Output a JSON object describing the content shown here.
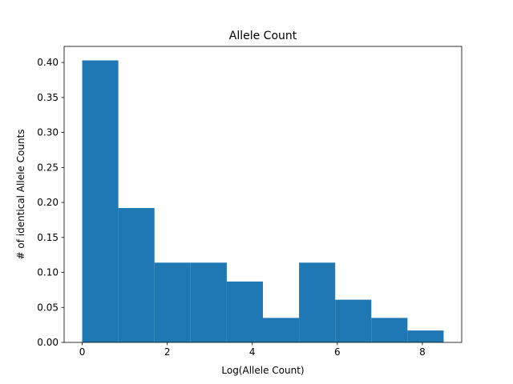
{
  "chart_data": {
    "type": "bar",
    "title": "Allele Count",
    "xlabel": "Log(Allele Count)",
    "ylabel": "# of identical Allele Counts",
    "bin_edges": [
      0.0,
      0.85,
      1.7,
      2.55,
      3.4,
      4.25,
      5.1,
      5.95,
      6.8,
      7.65,
      8.5
    ],
    "values": [
      0.403,
      0.192,
      0.114,
      0.114,
      0.087,
      0.035,
      0.114,
      0.061,
      0.035,
      0.017
    ],
    "xlim": [
      -0.425,
      8.925
    ],
    "ylim": [
      0,
      0.423
    ],
    "xticks": [
      0,
      2,
      4,
      6,
      8
    ],
    "xtick_labels": [
      "0",
      "2",
      "4",
      "6",
      "8"
    ],
    "yticks": [
      0.0,
      0.05,
      0.1,
      0.15,
      0.2,
      0.25,
      0.3,
      0.35,
      0.4
    ],
    "ytick_labels": [
      "0.00",
      "0.05",
      "0.10",
      "0.15",
      "0.20",
      "0.25",
      "0.30",
      "0.35",
      "0.40"
    ],
    "bar_color": "#1f77b4",
    "grid": false
  }
}
